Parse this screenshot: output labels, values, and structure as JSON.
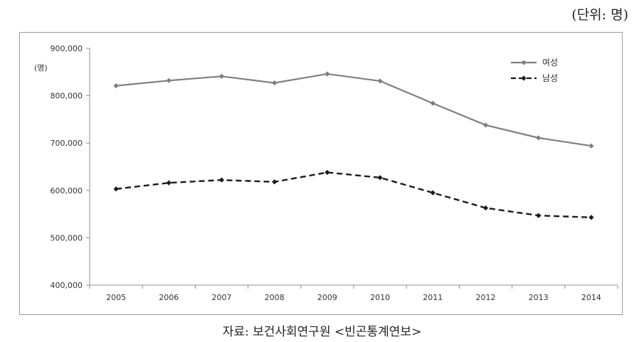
{
  "unit_note": "(단위: 명)",
  "source_note": "자료: 보건사회연구원 <빈곤통계연보>",
  "colors": {
    "female": "#7f7f7f",
    "male": "#1a1a1a",
    "axis": "#8c8c8c"
  },
  "chart_data": {
    "type": "line",
    "ylabel": "(명)",
    "ylim": [
      400000,
      900000
    ],
    "yticks": [
      "400,000",
      "500,000",
      "600,000",
      "700,000",
      "800,000",
      "900,000"
    ],
    "ytick_values": [
      400000,
      500000,
      600000,
      700000,
      800000,
      900000
    ],
    "x": [
      "2005",
      "2006",
      "2007",
      "2008",
      "2009",
      "2010",
      "2011",
      "2012",
      "2013",
      "2014"
    ],
    "legend_position": "top-right",
    "grid": false,
    "series": [
      {
        "name": "여성",
        "style": "solid",
        "values": [
          821000,
          832000,
          841000,
          827000,
          846000,
          831000,
          784000,
          738000,
          711000,
          694000
        ]
      },
      {
        "name": "남성",
        "style": "dashed",
        "values": [
          603000,
          616000,
          622000,
          618000,
          638000,
          627000,
          595000,
          563000,
          547000,
          543000
        ]
      }
    ]
  }
}
